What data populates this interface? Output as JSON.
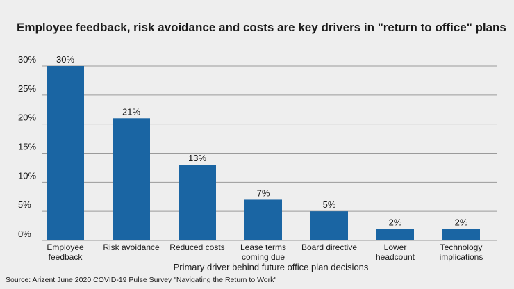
{
  "chart_data": {
    "type": "bar",
    "title": "Employee feedback, risk avoidance and costs are key drivers in \"return to office\" plans",
    "xlabel": "Primary driver behind future office plan decisions",
    "ylabel": "",
    "source": "Source: Arizent June 2020 COVID-19 Pulse Survey \"Navigating the Return to Work\"",
    "categories": [
      [
        "Employee",
        "feedback"
      ],
      [
        "Risk avoidance"
      ],
      [
        "Reduced costs"
      ],
      [
        "Lease terms",
        "coming due"
      ],
      [
        "Board directive"
      ],
      [
        "Lower",
        "headcount"
      ],
      [
        "Technology",
        "implications"
      ]
    ],
    "values": [
      30,
      21,
      13,
      7,
      5,
      2,
      2
    ],
    "value_labels": [
      "30%",
      "21%",
      "13%",
      "7%",
      "5%",
      "2%",
      "2%"
    ],
    "y_ticks": [
      0,
      5,
      10,
      15,
      20,
      25,
      30
    ],
    "y_tick_labels": [
      "0%",
      "5%",
      "10%",
      "15%",
      "20%",
      "25%",
      "30%"
    ],
    "ylim": [
      0,
      30
    ],
    "grid": true,
    "colors": {
      "bar": "#1a65a3",
      "grid": "#9a9a9a",
      "background": "#eeeeee"
    }
  }
}
